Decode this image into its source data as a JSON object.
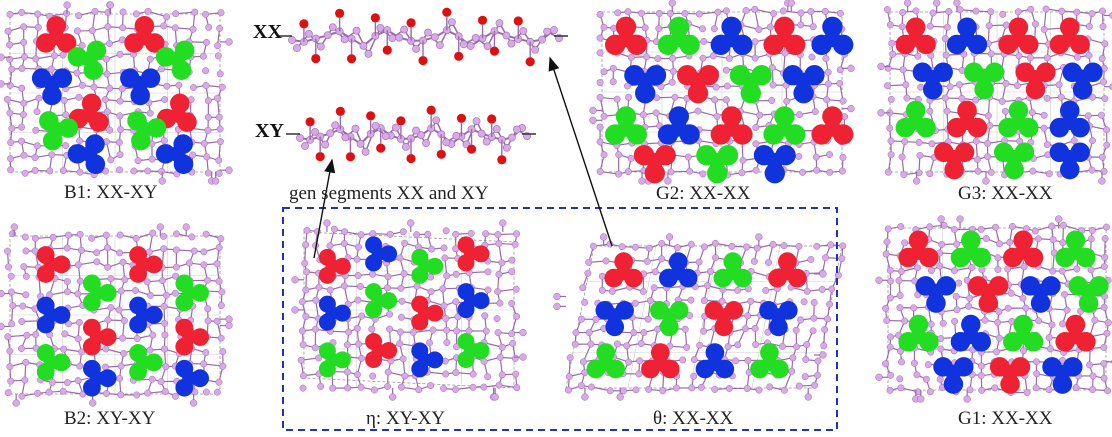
{
  "colors": {
    "red": "#ee2233",
    "green": "#22dd22",
    "blue": "#1133dd",
    "backbone": "#d8a8e8",
    "backbone_edge": "#9a6aaa",
    "oxygen": "#dd1111",
    "box_dash": "#2233bb",
    "cell_line": "#999999",
    "arrow": "#111111"
  },
  "panels": {
    "B1": {
      "caption": "B1: XX-XY"
    },
    "B2": {
      "caption": "B2: XY-XY"
    },
    "eta": {
      "caption": "η: XY-XY"
    },
    "theta": {
      "caption": "θ: XX-XX"
    },
    "G2": {
      "caption": "G2: XX-XX"
    },
    "G3": {
      "caption": "G3: XX-XX"
    },
    "G1": {
      "caption": "G1: XX-XX"
    }
  },
  "segments": {
    "xx_label": "XX",
    "xy_label": "XY",
    "caption": "gen segments XX and XY"
  }
}
